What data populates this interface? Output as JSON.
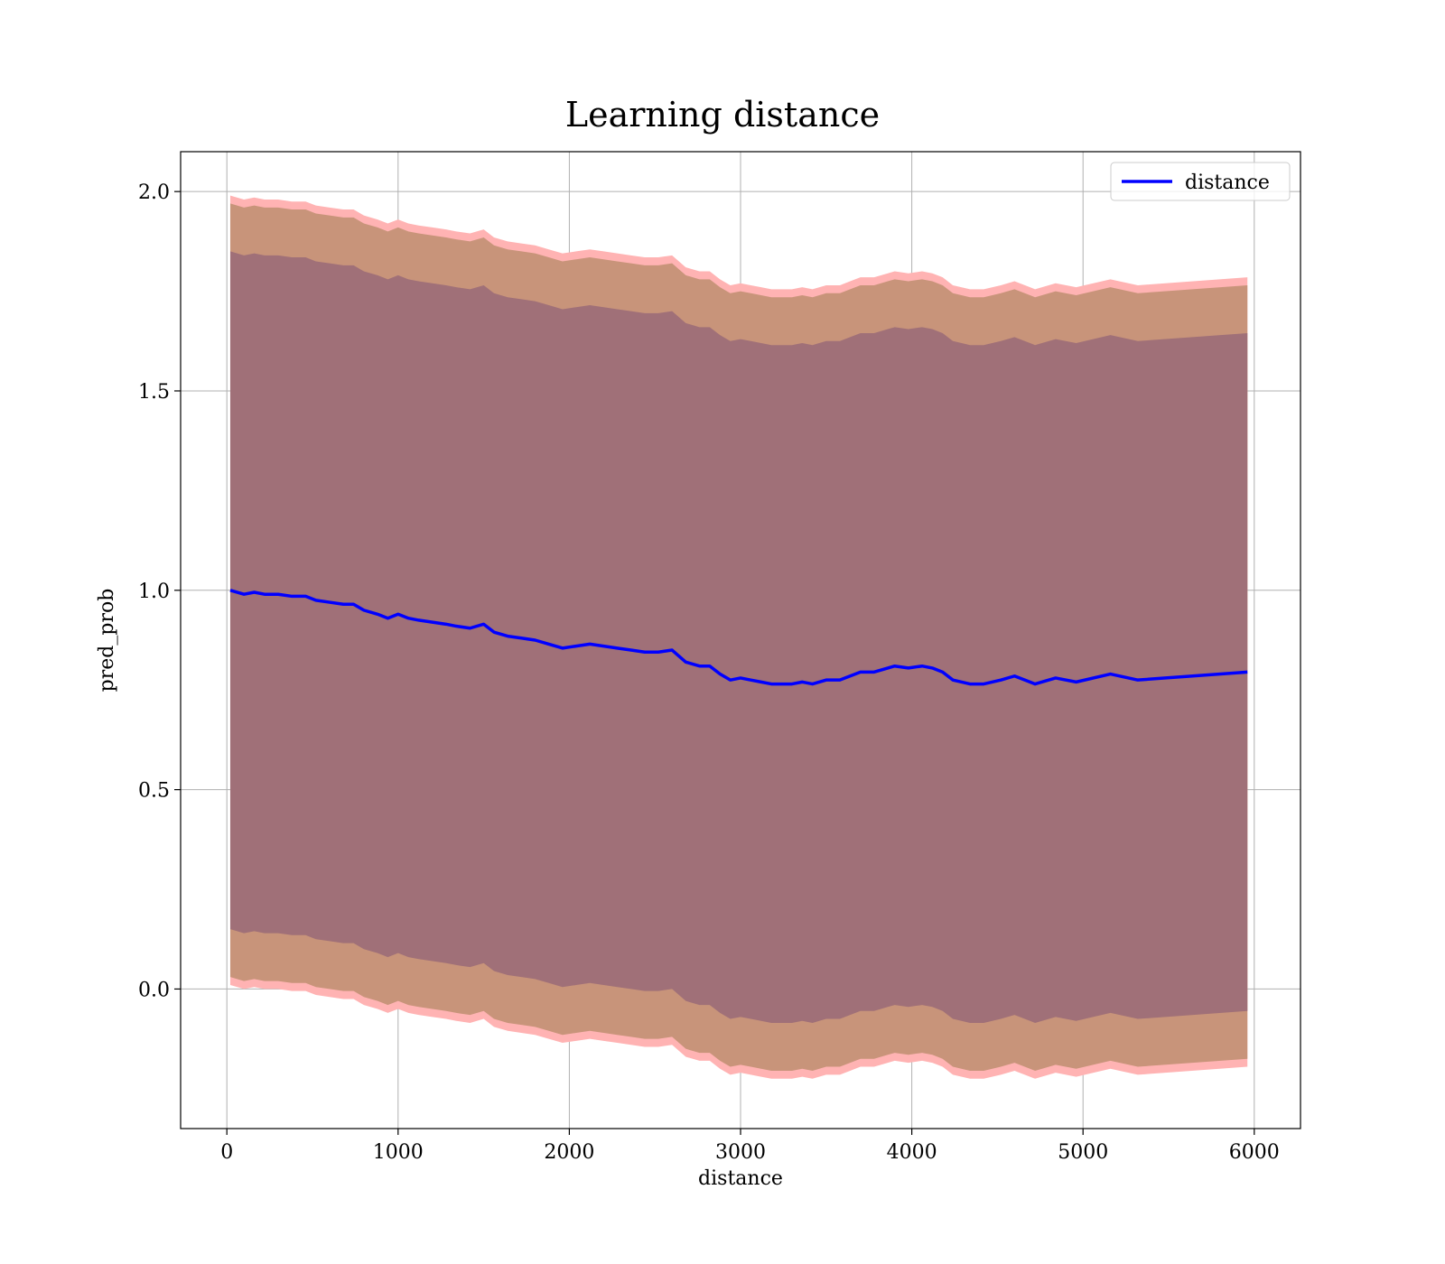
{
  "chart_data": {
    "type": "line",
    "title": "Learning distance",
    "xlabel": "distance",
    "ylabel": "pred_prob",
    "xlim": [
      -270,
      6270
    ],
    "ylim": [
      -0.35,
      2.1
    ],
    "xticks": [
      0,
      1000,
      2000,
      3000,
      4000,
      5000,
      6000
    ],
    "xtick_labels": [
      "0",
      "1000",
      "2000",
      "3000",
      "4000",
      "5000",
      "6000"
    ],
    "yticks": [
      0.0,
      0.5,
      1.0,
      1.5,
      2.0
    ],
    "ytick_labels": [
      "0.0",
      "0.5",
      "1.0",
      "1.5",
      "2.0"
    ],
    "grid": true,
    "legend_position": "top-right",
    "colors": {
      "line": "#0000ff",
      "band_outer": "#ffb3b3",
      "band_middle": "#c8947a",
      "band_inner": "#a07078",
      "grid": "#b0b0b0"
    },
    "band_offsets": {
      "outer": 0.99,
      "middle": 0.97,
      "inner": 0.85
    },
    "series": [
      {
        "name": "distance",
        "x": [
          20,
          100,
          160,
          220,
          300,
          380,
          460,
          520,
          600,
          680,
          740,
          800,
          880,
          940,
          1000,
          1060,
          1120,
          1200,
          1280,
          1340,
          1420,
          1500,
          1560,
          1640,
          1720,
          1800,
          1880,
          1960,
          2040,
          2120,
          2200,
          2280,
          2360,
          2440,
          2520,
          2600,
          2680,
          2760,
          2820,
          2880,
          2940,
          3000,
          3060,
          3120,
          3180,
          3240,
          3300,
          3360,
          3420,
          3500,
          3580,
          3640,
          3700,
          3780,
          3860,
          3900,
          3980,
          4060,
          4120,
          4180,
          4240,
          4340,
          4420,
          4520,
          4600,
          4720,
          4840,
          4960,
          5160,
          5320,
          5960
        ],
        "values": [
          1.0,
          0.99,
          0.995,
          0.99,
          0.99,
          0.985,
          0.985,
          0.975,
          0.97,
          0.965,
          0.965,
          0.95,
          0.94,
          0.93,
          0.94,
          0.93,
          0.925,
          0.92,
          0.915,
          0.91,
          0.905,
          0.915,
          0.895,
          0.885,
          0.88,
          0.875,
          0.865,
          0.855,
          0.86,
          0.865,
          0.86,
          0.855,
          0.85,
          0.845,
          0.845,
          0.85,
          0.82,
          0.81,
          0.81,
          0.79,
          0.775,
          0.78,
          0.775,
          0.77,
          0.765,
          0.765,
          0.765,
          0.77,
          0.765,
          0.775,
          0.775,
          0.785,
          0.795,
          0.795,
          0.805,
          0.81,
          0.805,
          0.81,
          0.805,
          0.795,
          0.775,
          0.765,
          0.765,
          0.775,
          0.785,
          0.765,
          0.78,
          0.77,
          0.79,
          0.775,
          0.795
        ]
      }
    ]
  }
}
